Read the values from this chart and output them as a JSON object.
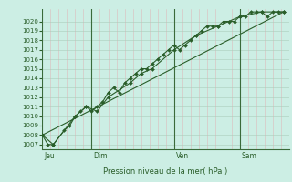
{
  "xlabel": "Pression niveau de la mer( hPa )",
  "background_color": "#cceee4",
  "plot_bg_color": "#cceee4",
  "grid_color_y": "#aaccbb",
  "grid_color_x_minor": "#ddbbbb",
  "grid_color_x_major": "#cc9999",
  "line_color": "#2a5e2a",
  "sep_color": "#3a6a3a",
  "ylim_min": 1007,
  "ylim_max": 1021,
  "yticks": [
    1007,
    1008,
    1009,
    1010,
    1011,
    1012,
    1013,
    1014,
    1015,
    1016,
    1017,
    1018,
    1019,
    1020
  ],
  "day_labels": [
    "Jeu",
    "Dim",
    "Ven",
    "Sam"
  ],
  "day_positions": [
    0,
    72,
    192,
    288
  ],
  "total_steps": 360,
  "series1": [
    [
      0,
      1008
    ],
    [
      8,
      1007
    ],
    [
      16,
      1007
    ],
    [
      32,
      1008.5
    ],
    [
      40,
      1009
    ],
    [
      48,
      1010
    ],
    [
      56,
      1010.5
    ],
    [
      64,
      1011
    ],
    [
      72,
      1010.5
    ],
    [
      80,
      1011
    ],
    [
      88,
      1011.5
    ],
    [
      96,
      1012.5
    ],
    [
      104,
      1013
    ],
    [
      112,
      1012.5
    ],
    [
      120,
      1013.5
    ],
    [
      128,
      1014
    ],
    [
      136,
      1014.5
    ],
    [
      144,
      1015
    ],
    [
      152,
      1015
    ],
    [
      160,
      1015.5
    ],
    [
      168,
      1016
    ],
    [
      176,
      1016.5
    ],
    [
      184,
      1017
    ],
    [
      192,
      1017.5
    ],
    [
      200,
      1017
    ],
    [
      208,
      1017.5
    ],
    [
      216,
      1018
    ],
    [
      224,
      1018.5
    ],
    [
      232,
      1019
    ],
    [
      240,
      1019.5
    ],
    [
      248,
      1019.5
    ],
    [
      256,
      1019.5
    ],
    [
      264,
      1020
    ],
    [
      272,
      1020
    ],
    [
      280,
      1020
    ],
    [
      288,
      1020.5
    ],
    [
      296,
      1020.5
    ],
    [
      304,
      1021
    ],
    [
      312,
      1021
    ],
    [
      320,
      1021
    ],
    [
      328,
      1020.5
    ],
    [
      336,
      1021
    ],
    [
      344,
      1021
    ],
    [
      352,
      1021
    ]
  ],
  "series2": [
    [
      0,
      1008
    ],
    [
      16,
      1007
    ],
    [
      48,
      1010
    ],
    [
      64,
      1011
    ],
    [
      80,
      1010.5
    ],
    [
      96,
      1012
    ],
    [
      128,
      1013.5
    ],
    [
      144,
      1014.5
    ],
    [
      160,
      1015
    ],
    [
      192,
      1017
    ],
    [
      224,
      1018.5
    ],
    [
      256,
      1019.5
    ],
    [
      288,
      1020.5
    ],
    [
      320,
      1021
    ],
    [
      352,
      1021
    ]
  ],
  "series3_linear": [
    [
      0,
      1008
    ],
    [
      352,
      1021
    ]
  ],
  "marker_size": 2.0,
  "line_width": 0.8,
  "ytick_fontsize": 5.0,
  "xlabel_fontsize": 6.0,
  "daylabel_fontsize": 5.5
}
